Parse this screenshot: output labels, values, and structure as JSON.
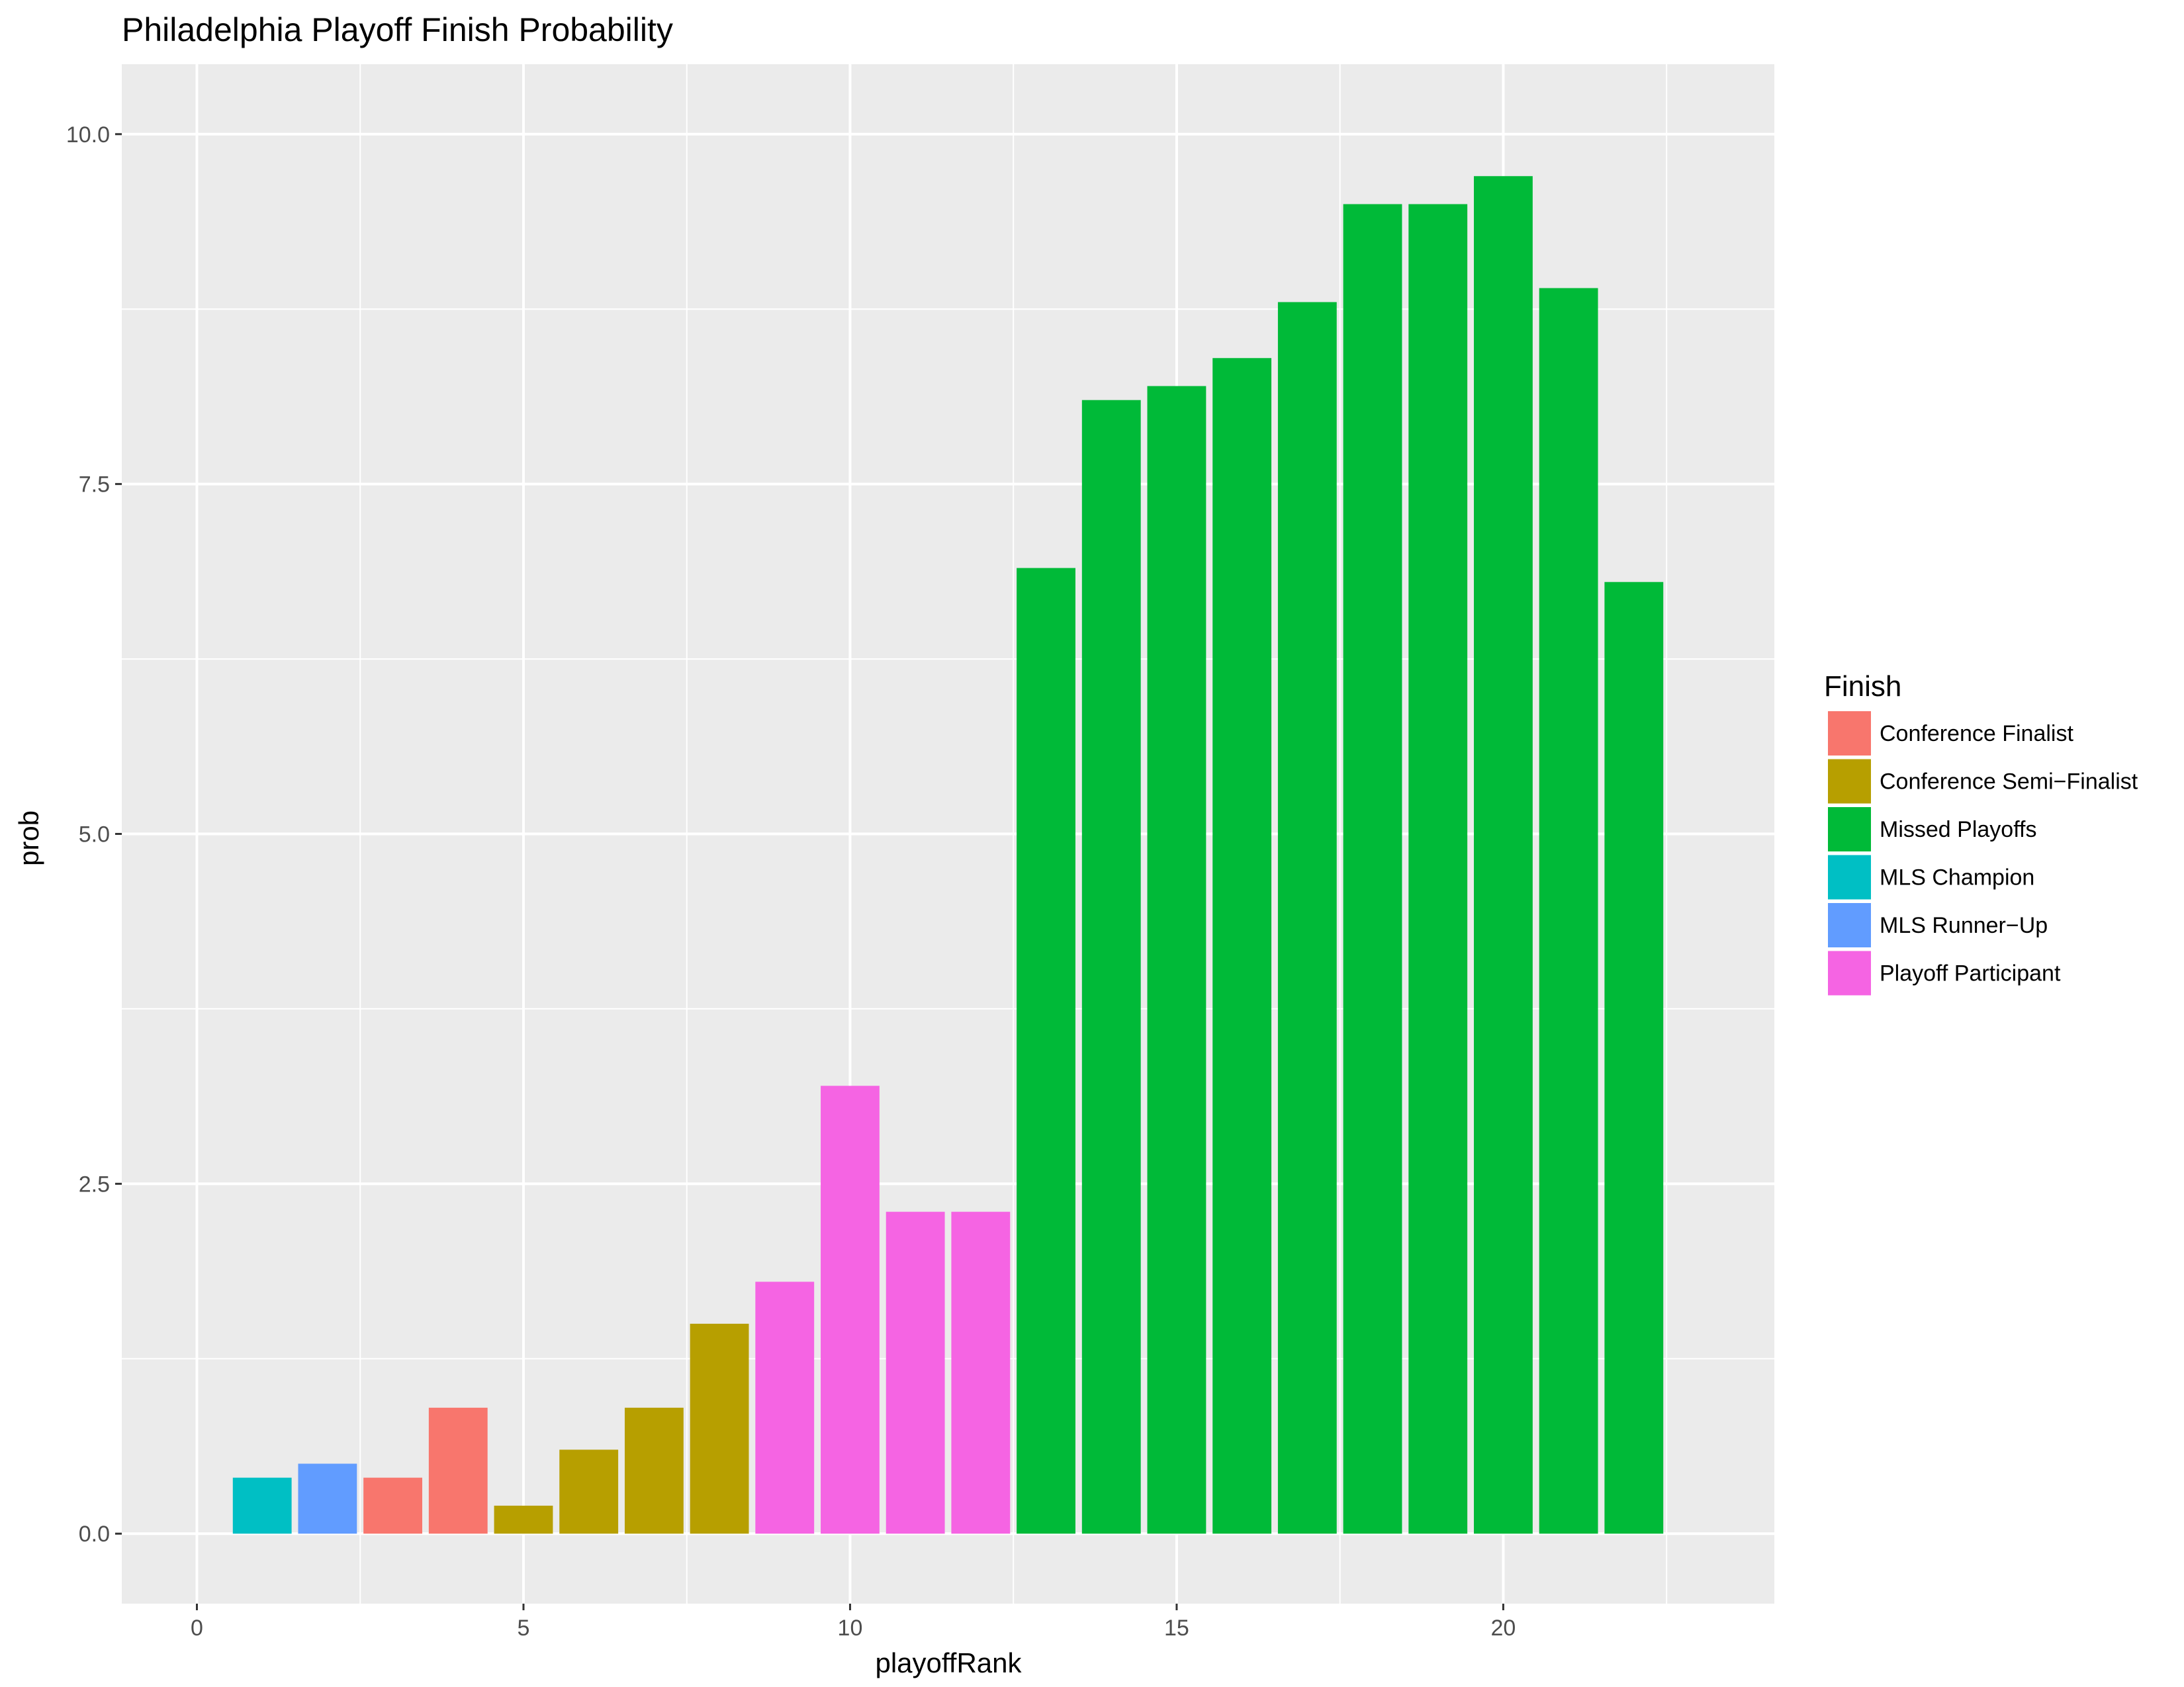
{
  "chart_data": {
    "type": "bar",
    "title": "Philadelphia Playoff Finish Probability",
    "xlabel": "playoffRank",
    "ylabel": "prob",
    "xlim": [
      -1.15,
      24.15
    ],
    "ylim": [
      -0.5,
      10.5
    ],
    "x_ticks": [
      0,
      5,
      10,
      15,
      20
    ],
    "x_tick_labels": [
      "0",
      "5",
      "10",
      "15",
      "20"
    ],
    "y_ticks": [
      0,
      2.5,
      5,
      7.5,
      10
    ],
    "y_tick_labels": [
      "0.0",
      "2.5",
      "5.0",
      "7.5",
      "10.0"
    ],
    "grid": true,
    "legend": {
      "title": "Finish",
      "position": "right",
      "entries": [
        {
          "label": "Conference Finalist",
          "color": "#F8766D"
        },
        {
          "label": "Conference Semi−Finalist",
          "color": "#B79F00"
        },
        {
          "label": "Missed Playoffs",
          "color": "#00BA38"
        },
        {
          "label": "MLS Champion",
          "color": "#00BFC4"
        },
        {
          "label": "MLS Runner−Up",
          "color": "#619CFF"
        },
        {
          "label": "Playoff Participant",
          "color": "#F564E3"
        }
      ]
    },
    "colors": {
      "panel_background": "#EBEBEB",
      "grid_major": "#FFFFFF",
      "tick": "#333333"
    },
    "bars": [
      {
        "x": 1,
        "value": 0.4,
        "finish": "MLS Champion"
      },
      {
        "x": 2,
        "value": 0.5,
        "finish": "MLS Runner−Up"
      },
      {
        "x": 3,
        "value": 0.4,
        "finish": "Conference Finalist"
      },
      {
        "x": 4,
        "value": 0.9,
        "finish": "Conference Finalist"
      },
      {
        "x": 5,
        "value": 0.2,
        "finish": "Conference Semi−Finalist"
      },
      {
        "x": 6,
        "value": 0.6,
        "finish": "Conference Semi−Finalist"
      },
      {
        "x": 7,
        "value": 0.9,
        "finish": "Conference Semi−Finalist"
      },
      {
        "x": 8,
        "value": 1.5,
        "finish": "Conference Semi−Finalist"
      },
      {
        "x": 9,
        "value": 1.8,
        "finish": "Playoff Participant"
      },
      {
        "x": 10,
        "value": 3.2,
        "finish": "Playoff Participant"
      },
      {
        "x": 11,
        "value": 2.3,
        "finish": "Playoff Participant"
      },
      {
        "x": 12,
        "value": 2.3,
        "finish": "Playoff Participant"
      },
      {
        "x": 13,
        "value": 6.9,
        "finish": "Missed Playoffs"
      },
      {
        "x": 14,
        "value": 8.1,
        "finish": "Missed Playoffs"
      },
      {
        "x": 15,
        "value": 8.2,
        "finish": "Missed Playoffs"
      },
      {
        "x": 16,
        "value": 8.4,
        "finish": "Missed Playoffs"
      },
      {
        "x": 17,
        "value": 8.8,
        "finish": "Missed Playoffs"
      },
      {
        "x": 18,
        "value": 9.5,
        "finish": "Missed Playoffs"
      },
      {
        "x": 19,
        "value": 9.5,
        "finish": "Missed Playoffs"
      },
      {
        "x": 20,
        "value": 9.7,
        "finish": "Missed Playoffs"
      },
      {
        "x": 21,
        "value": 8.9,
        "finish": "Missed Playoffs"
      },
      {
        "x": 22,
        "value": 6.8,
        "finish": "Missed Playoffs"
      }
    ]
  }
}
